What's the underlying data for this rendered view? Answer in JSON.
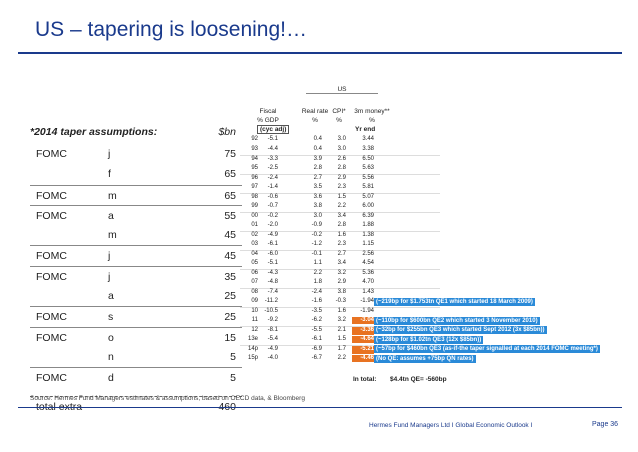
{
  "title": "US – tapering is loosening!…",
  "assumptions": {
    "heading": "*2014 taper assumptions:",
    "unit": "$bn",
    "rows": [
      {
        "fomc": "FOMC",
        "month": "j",
        "value": "75"
      },
      {
        "fomc": "",
        "month": "f",
        "value": "65"
      },
      {
        "fomc": "FOMC",
        "month": "m",
        "value": "65"
      },
      {
        "fomc": "FOMC",
        "month": "a",
        "value": "55"
      },
      {
        "fomc": "",
        "month": "m",
        "value": "45"
      },
      {
        "fomc": "FOMC",
        "month": "j",
        "value": "45"
      },
      {
        "fomc": "FOMC",
        "month": "j",
        "value": "35"
      },
      {
        "fomc": "",
        "month": "a",
        "value": "25"
      },
      {
        "fomc": "FOMC",
        "month": "s",
        "value": "25"
      },
      {
        "fomc": "FOMC",
        "month": "o",
        "value": "15"
      },
      {
        "fomc": "",
        "month": "n",
        "value": "5"
      },
      {
        "fomc": "FOMC",
        "month": "d",
        "value": "5"
      }
    ],
    "total_label": "total extra",
    "total_value": "460"
  },
  "table": {
    "region": "US",
    "col_fiscal": "Fiscal",
    "col_fiscal_unit": "% GDP",
    "col_real": "Real rate",
    "col_real_unit": "%",
    "col_cpi": "CPI*",
    "col_cpi_unit": "%",
    "col_m3": "3m money**",
    "col_m3_unit": "%",
    "tag_cycadj": "(cyc adj)",
    "tag_yrend": "Yr end",
    "rows": [
      {
        "yr": "92",
        "fis": "-5.1",
        "real": "0.4",
        "cpi": "3.0",
        "m3": "3.44"
      },
      {
        "yr": "93",
        "fis": "-4.4",
        "real": "0.4",
        "cpi": "3.0",
        "m3": "3.38"
      },
      {
        "yr": "94",
        "fis": "-3.3",
        "real": "3.9",
        "cpi": "2.6",
        "m3": "6.50"
      },
      {
        "yr": "95",
        "fis": "-2.5",
        "real": "2.8",
        "cpi": "2.8",
        "m3": "5.63"
      },
      {
        "yr": "96",
        "fis": "-2.4",
        "real": "2.7",
        "cpi": "2.9",
        "m3": "5.56"
      },
      {
        "yr": "97",
        "fis": "-1.4",
        "real": "3.5",
        "cpi": "2.3",
        "m3": "5.81"
      },
      {
        "yr": "98",
        "fis": "-0.6",
        "real": "3.6",
        "cpi": "1.5",
        "m3": "5.07"
      },
      {
        "yr": "99",
        "fis": "-0.7",
        "real": "3.8",
        "cpi": "2.2",
        "m3": "6.00"
      },
      {
        "yr": "00",
        "fis": "-0.2",
        "real": "3.0",
        "cpi": "3.4",
        "m3": "6.39"
      },
      {
        "yr": "01",
        "fis": "-2.0",
        "real": "-0.9",
        "cpi": "2.8",
        "m3": "1.88"
      },
      {
        "yr": "02",
        "fis": "-4.9",
        "real": "-0.2",
        "cpi": "1.6",
        "m3": "1.38"
      },
      {
        "yr": "03",
        "fis": "-6.1",
        "real": "-1.2",
        "cpi": "2.3",
        "m3": "1.15"
      },
      {
        "yr": "04",
        "fis": "-6.0",
        "real": "-0.1",
        "cpi": "2.7",
        "m3": "2.56"
      },
      {
        "yr": "05",
        "fis": "-5.1",
        "real": "1.1",
        "cpi": "3.4",
        "m3": "4.54"
      },
      {
        "yr": "06",
        "fis": "-4.3",
        "real": "2.2",
        "cpi": "3.2",
        "m3": "5.36"
      },
      {
        "yr": "07",
        "fis": "-4.8",
        "real": "1.8",
        "cpi": "2.9",
        "m3": "4.70"
      },
      {
        "yr": "08",
        "fis": "-7.4",
        "real": "-2.4",
        "cpi": "3.8",
        "m3": "1.43"
      },
      {
        "yr": "09",
        "fis": "-11.2",
        "real": "-1.6",
        "cpi": "-0.3",
        "m3": "-1.94"
      },
      {
        "yr": "10",
        "fis": "-10.5",
        "real": "-3.5",
        "cpi": "1.6",
        "m3": "-1.94"
      },
      {
        "yr": "11",
        "fis": "-9.2",
        "real": "-6.2",
        "cpi": "3.2",
        "m3": "-3.04"
      },
      {
        "yr": "12",
        "fis": "-8.1",
        "real": "-5.5",
        "cpi": "2.1",
        "m3": "-3.36"
      },
      {
        "yr": "13e",
        "fis": "-5.4",
        "real": "-6.1",
        "cpi": "1.5",
        "m3": "-4.64"
      },
      {
        "yr": "14p",
        "fis": "-4.9",
        "real": "-6.9",
        "cpi": "1.7",
        "m3": "-5.21"
      },
      {
        "yr": "15p",
        "fis": "-4.0",
        "real": "-6.7",
        "cpi": "2.2",
        "m3": "-4.46"
      }
    ],
    "notes": [
      "(~219bp for $1.753tn QE1 which started 18 March 2009)",
      "(~110bp for $600bn QE2 which started 3 November 2010)",
      "(~32bp for $255bn QE3 which started Sept 2012 (3x $85bn))",
      "(~128bp for $1.02tn QE3 (12x $85bn))",
      "(~57bp for $460bn QE3 (as-if-the taper signalled at each 2014 FOMC meeting*)",
      "(No QE: assumes +75bp QN rates)"
    ],
    "in_total_label": "In total:",
    "in_total_value": "$4.4tn QE= -560bp"
  },
  "source": "Source: Hermes Fund Managers estimates & assumptions, based on OECD data, & Bloomberg",
  "footer_org": "Hermes Fund Managers Ltd I Global Economic Outlook I",
  "footer_page": "Page 36",
  "colors": {
    "title": "#1a3a8c",
    "highlight": "#e87322",
    "note": "#2a8ad8"
  }
}
